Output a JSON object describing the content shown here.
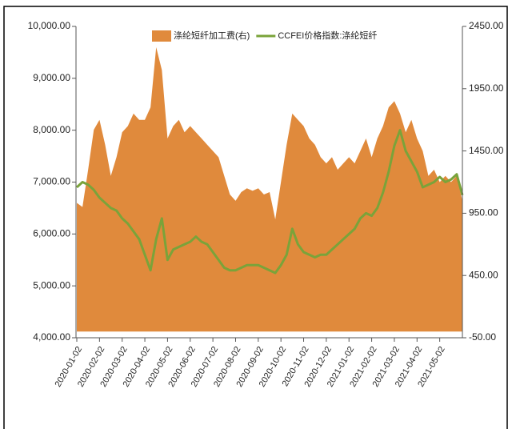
{
  "chart_data": {
    "type": "area-line",
    "categories": [
      "2020-01-02",
      null,
      null,
      null,
      "2020-02-02",
      null,
      null,
      null,
      "2020-03-02",
      null,
      null,
      null,
      "2020-04-02",
      null,
      null,
      null,
      "2020-05-02",
      null,
      null,
      null,
      "2020-06-02",
      null,
      null,
      null,
      "2020-07-02",
      null,
      null,
      null,
      "2020-08-02",
      null,
      null,
      null,
      "2020-09-02",
      null,
      null,
      null,
      "2020-10-02",
      null,
      null,
      null,
      "2020-11-02",
      null,
      null,
      null,
      "2020-12-02",
      null,
      null,
      null,
      "2021-01-02",
      null,
      null,
      null,
      "2021-02-02",
      null,
      null,
      null,
      "2021-03-02",
      null,
      null,
      null,
      "2021-04-02",
      null,
      null,
      null,
      "2021-05-02",
      null,
      null,
      null,
      null
    ],
    "series": [
      {
        "name": "涤纶短纤加工费(右)",
        "color": "#e08a3c",
        "axis": "y2",
        "kind": "area",
        "values": [
          1033,
          1000,
          1300,
          1620,
          1700,
          1500,
          1250,
          1400,
          1600,
          1650,
          1750,
          1700,
          1700,
          1800,
          2283,
          2100,
          1550,
          1650,
          1700,
          1600,
          1650,
          1600,
          1550,
          1500,
          1450,
          1400,
          1250,
          1100,
          1050,
          1120,
          1150,
          1130,
          1150,
          1100,
          1120,
          900,
          1200,
          1500,
          1750,
          1700,
          1650,
          1550,
          1500,
          1400,
          1350,
          1400,
          1300,
          1350,
          1400,
          1350,
          1450,
          1550,
          1400,
          1550,
          1650,
          1800,
          1850,
          1750,
          1600,
          1700,
          1550,
          1450,
          1250,
          1300,
          1200,
          1250,
          1200,
          1250,
          1050
        ]
      },
      {
        "name": "CCFEI价格指数:涤纶短纤",
        "color": "#7aa33a",
        "kind": "line",
        "values": [
          6900,
          7000,
          6950,
          6850,
          6700,
          6600,
          6500,
          6450,
          6300,
          6200,
          6050,
          5900,
          5600,
          5300,
          5900,
          6300,
          5500,
          5700,
          5750,
          5800,
          5850,
          5950,
          5850,
          5800,
          5650,
          5500,
          5350,
          5300,
          5300,
          5350,
          5400,
          5400,
          5400,
          5350,
          5300,
          5250,
          5400,
          5600,
          6100,
          5800,
          5650,
          5600,
          5550,
          5600,
          5600,
          5700,
          5800,
          5900,
          6000,
          6100,
          6300,
          6400,
          6350,
          6500,
          6800,
          7200,
          7700,
          8000,
          7600,
          7400,
          7200,
          6900,
          6950,
          7000,
          7100,
          7000,
          7050,
          7150,
          6750
        ]
      }
    ],
    "ylim": [
      4000,
      10000
    ],
    "yticks": [
      {
        "value": 4000,
        "label": "4,000.00"
      },
      {
        "value": 5000,
        "label": "5,000.00"
      },
      {
        "value": 6000,
        "label": "6,000.00"
      },
      {
        "value": 7000,
        "label": "7,000.00"
      },
      {
        "value": 8000,
        "label": "8,000.00"
      },
      {
        "value": 9000,
        "label": "9,000.00"
      },
      {
        "value": 10000,
        "label": "10,000.00"
      }
    ],
    "y2lim": [
      -50,
      2450
    ],
    "y2ticks": [
      {
        "value": -50,
        "label": "-50.00"
      },
      {
        "value": 450,
        "label": "450.00"
      },
      {
        "value": 950,
        "label": "950.00"
      },
      {
        "value": 1450,
        "label": "1450.00"
      },
      {
        "value": 1950,
        "label": "1950.00"
      },
      {
        "value": 2450,
        "label": "2450.00"
      }
    ],
    "legend": "top"
  }
}
